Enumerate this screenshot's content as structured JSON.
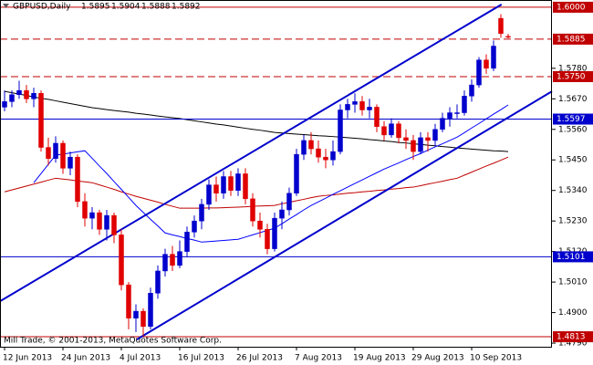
{
  "chart_data": {
    "type": "candlestick",
    "symbol": "GBPUSD,Daily",
    "footer": "Mill Trade, © 2001-2013, MetaQuotes Software Corp.",
    "categories": [
      "12 Jun 2013",
      null,
      null,
      null,
      null,
      null,
      null,
      null,
      "24 Jun 2013",
      null,
      null,
      null,
      null,
      null,
      null,
      null,
      "4 Jul 2013",
      null,
      null,
      null,
      null,
      null,
      null,
      null,
      "16 Jul 2013",
      null,
      null,
      null,
      null,
      null,
      null,
      null,
      "26 Jul 2013",
      null,
      null,
      null,
      null,
      null,
      null,
      null,
      "7 Aug 2013",
      null,
      null,
      null,
      null,
      null,
      null,
      null,
      "19 Aug 2013",
      null,
      null,
      null,
      null,
      null,
      null,
      null,
      "29 Aug 2013",
      null,
      null,
      null,
      null,
      null,
      null,
      null,
      "10 Sep 2013",
      null,
      null,
      null,
      null,
      null
    ],
    "open": [
      1.564,
      1.566,
      1.5685,
      1.57,
      1.567,
      1.569,
      1.5495,
      1.5455,
      1.551,
      1.542,
      1.546,
      1.53,
      1.524,
      1.526,
      1.52,
      1.525,
      1.518,
      1.5,
      1.488,
      1.4905,
      1.485,
      1.497,
      1.505,
      1.511,
      1.507,
      1.512,
      1.519,
      1.523,
      1.529,
      1.536,
      1.533,
      1.539,
      1.534,
      1.54,
      1.531,
      1.523,
      1.52,
      1.513,
      1.524,
      1.527,
      1.533,
      1.547,
      1.552,
      1.549,
      1.546,
      1.545,
      1.548,
      1.563,
      1.565,
      1.566,
      1.563,
      1.564,
      1.557,
      1.554,
      1.558,
      1.553,
      1.552,
      1.548,
      1.553,
      1.552,
      1.556,
      1.56,
      1.562,
      1.562,
      1.568,
      1.572,
      1.581,
      1.578,
      1.596,
      1.5895
    ],
    "high": [
      1.57,
      1.57,
      1.5735,
      1.572,
      1.571,
      1.57,
      1.553,
      1.5535,
      1.552,
      1.548,
      1.547,
      1.533,
      1.528,
      1.527,
      1.527,
      1.526,
      1.52,
      1.501,
      1.493,
      1.4915,
      1.499,
      1.507,
      1.513,
      1.514,
      1.516,
      1.521,
      1.525,
      1.531,
      1.538,
      1.539,
      1.541,
      1.541,
      1.542,
      1.542,
      1.533,
      1.526,
      1.522,
      1.526,
      1.53,
      1.535,
      1.549,
      1.554,
      1.555,
      1.552,
      1.549,
      1.552,
      1.565,
      1.567,
      1.569,
      1.568,
      1.567,
      1.565,
      1.559,
      1.56,
      1.559,
      1.556,
      1.554,
      1.555,
      1.555,
      1.558,
      1.562,
      1.564,
      1.565,
      1.57,
      1.574,
      1.582,
      1.583,
      1.588,
      1.5975,
      1.5904
    ],
    "low": [
      1.5625,
      1.564,
      1.567,
      1.5655,
      1.564,
      1.548,
      1.543,
      1.544,
      1.54,
      1.5395,
      1.528,
      1.521,
      1.52,
      1.518,
      1.516,
      1.515,
      1.498,
      1.484,
      1.483,
      1.4815,
      1.484,
      1.495,
      1.503,
      1.505,
      1.506,
      1.51,
      1.517,
      1.52,
      1.527,
      1.53,
      1.531,
      1.532,
      1.532,
      1.529,
      1.521,
      1.517,
      1.511,
      1.512,
      1.52,
      1.525,
      1.532,
      1.545,
      1.547,
      1.544,
      1.542,
      1.543,
      1.547,
      1.56,
      1.562,
      1.561,
      1.56,
      1.555,
      1.552,
      1.553,
      1.551,
      1.549,
      1.545,
      1.547,
      1.548,
      1.55,
      1.555,
      1.557,
      1.56,
      1.561,
      1.566,
      1.571,
      1.576,
      1.577,
      1.589,
      1.5888
    ],
    "close": [
      1.566,
      1.5685,
      1.57,
      1.567,
      1.569,
      1.5495,
      1.5455,
      1.551,
      1.542,
      1.546,
      1.53,
      1.524,
      1.526,
      1.52,
      1.525,
      1.518,
      1.5,
      1.488,
      1.4905,
      1.485,
      1.497,
      1.505,
      1.511,
      1.507,
      1.512,
      1.519,
      1.523,
      1.529,
      1.536,
      1.533,
      1.539,
      1.534,
      1.54,
      1.531,
      1.523,
      1.52,
      1.513,
      1.524,
      1.527,
      1.533,
      1.547,
      1.552,
      1.549,
      1.546,
      1.545,
      1.548,
      1.563,
      1.565,
      1.566,
      1.563,
      1.564,
      1.557,
      1.554,
      1.558,
      1.553,
      1.552,
      1.548,
      1.553,
      1.552,
      1.556,
      1.56,
      1.562,
      1.562,
      1.568,
      1.572,
      1.581,
      1.578,
      1.586,
      1.5905,
      1.5892
    ],
    "up_color": "#0000cd",
    "down_color": "#e00000",
    "lines": [
      {
        "color": "#000000",
        "values": [
          1.5697,
          1.5692,
          1.5687,
          1.5682,
          1.5677,
          1.5672,
          1.5668,
          1.5663,
          1.5658,
          1.5653,
          1.5648,
          1.5643,
          1.5638,
          1.5635,
          1.5631,
          1.5628,
          1.5625,
          1.5622,
          1.5618,
          1.5615,
          1.5612,
          1.5608,
          1.5605,
          1.5602,
          1.5599,
          1.5595,
          1.5591,
          1.5587,
          1.5583,
          1.5579,
          1.5576,
          1.5572,
          1.5568,
          1.5564,
          1.556,
          1.5557,
          1.5553,
          1.5549,
          1.5547,
          1.5545,
          1.5543,
          1.5541,
          1.5539,
          1.5537,
          1.5536,
          1.5534,
          1.5532,
          1.553,
          1.5528,
          1.5526,
          1.5523,
          1.5521,
          1.5518,
          1.5516,
          1.5513,
          1.5511,
          1.5508,
          1.5506,
          1.5503,
          1.5501,
          1.5498,
          1.5496,
          1.5493,
          1.5491,
          1.5489,
          1.5487,
          1.5485,
          1.5483,
          1.5482,
          1.548
        ]
      },
      {
        "color": "#c00000",
        "values": [
          1.5335,
          1.5342,
          1.5349,
          1.5356,
          1.5363,
          1.537,
          1.5377,
          1.5384,
          1.5381,
          1.5378,
          1.5374,
          1.5371,
          1.5368,
          1.536,
          1.5352,
          1.5344,
          1.5335,
          1.5327,
          1.5319,
          1.5312,
          1.5305,
          1.5298,
          1.529,
          1.5283,
          1.5276,
          1.5276,
          1.5276,
          1.5276,
          1.5277,
          1.5277,
          1.5278,
          1.5279,
          1.528,
          1.5281,
          1.5283,
          1.5284,
          1.5285,
          1.5286,
          1.5292,
          1.5297,
          1.5303,
          1.5308,
          1.5314,
          1.5319,
          1.5322,
          1.5324,
          1.5327,
          1.533,
          1.5332,
          1.5335,
          1.5337,
          1.534,
          1.5342,
          1.5345,
          1.5347,
          1.535,
          1.5352,
          1.5357,
          1.5363,
          1.5368,
          1.5373,
          1.5379,
          1.5384,
          1.5395,
          1.5406,
          1.5417,
          1.5428,
          1.5438,
          1.5449,
          1.546
        ]
      },
      {
        "color": "#0000ff",
        "values": [
          null,
          null,
          null,
          null,
          1.5368,
          1.5401,
          1.5434,
          1.5467,
          1.5471,
          1.5475,
          1.5479,
          1.5483,
          1.5456,
          1.5428,
          1.5401,
          1.5372,
          1.5344,
          1.5315,
          1.5286,
          1.5261,
          1.5236,
          1.5212,
          1.5187,
          1.518,
          1.5174,
          1.5167,
          1.5161,
          1.5154,
          1.5156,
          1.5158,
          1.516,
          1.5162,
          1.5164,
          1.5172,
          1.518,
          1.5188,
          1.5196,
          1.5204,
          1.522,
          1.5237,
          1.5253,
          1.527,
          1.5286,
          1.5299,
          1.5312,
          1.5326,
          1.5339,
          1.5352,
          1.5365,
          1.5378,
          1.5391,
          1.5404,
          1.5417,
          1.5428,
          1.5439,
          1.5451,
          1.5462,
          1.5473,
          1.5485,
          1.5497,
          1.5508,
          1.552,
          1.5532,
          1.5548,
          1.5565,
          1.5581,
          1.5598,
          1.5615,
          1.5631,
          1.5648
        ]
      }
    ],
    "trendlines": [
      {
        "color": "#0000cc",
        "x": [
          -0.625,
          68.1
        ],
        "y": [
          1.4941,
          1.601
        ]
      },
      {
        "color": "#0000cc",
        "x": [
          18.1,
          75
        ],
        "y": [
          1.4803,
          1.5697
        ]
      }
    ],
    "levels": [
      {
        "value": 1.6,
        "label": "1.6000",
        "color": "#c00000",
        "style": "solid"
      },
      {
        "value": 1.5885,
        "label": "1.5885",
        "color": "#c00000",
        "style": "dashed"
      },
      {
        "value": 1.575,
        "label": "1.5750",
        "color": "#c00000",
        "style": "dashed"
      },
      {
        "value": 1.5597,
        "label": "1.5597",
        "color": "#0000cc",
        "style": "solid"
      },
      {
        "value": 1.5101,
        "label": "1.5101",
        "color": "#0000cc",
        "style": "solid"
      },
      {
        "value": 1.4813,
        "label": "1.4813",
        "color": "#c00000",
        "style": "solid"
      }
    ],
    "ylim": [
      1.4777,
      1.6026
    ],
    "yticks": [
      {
        "value": 1.578,
        "label": "1.5780"
      },
      {
        "value": 1.567,
        "label": "1.5670"
      },
      {
        "value": 1.556,
        "label": "1.5560"
      },
      {
        "value": 1.545,
        "label": "1.5450"
      },
      {
        "value": 1.534,
        "label": "1.5340"
      },
      {
        "value": 1.523,
        "label": "1.5230"
      },
      {
        "value": 1.512,
        "label": "1.5120"
      },
      {
        "value": 1.501,
        "label": "1.5010"
      },
      {
        "value": 1.49,
        "label": "1.4900"
      },
      {
        "value": 1.479,
        "label": "1.4790"
      }
    ],
    "grid": false
  }
}
